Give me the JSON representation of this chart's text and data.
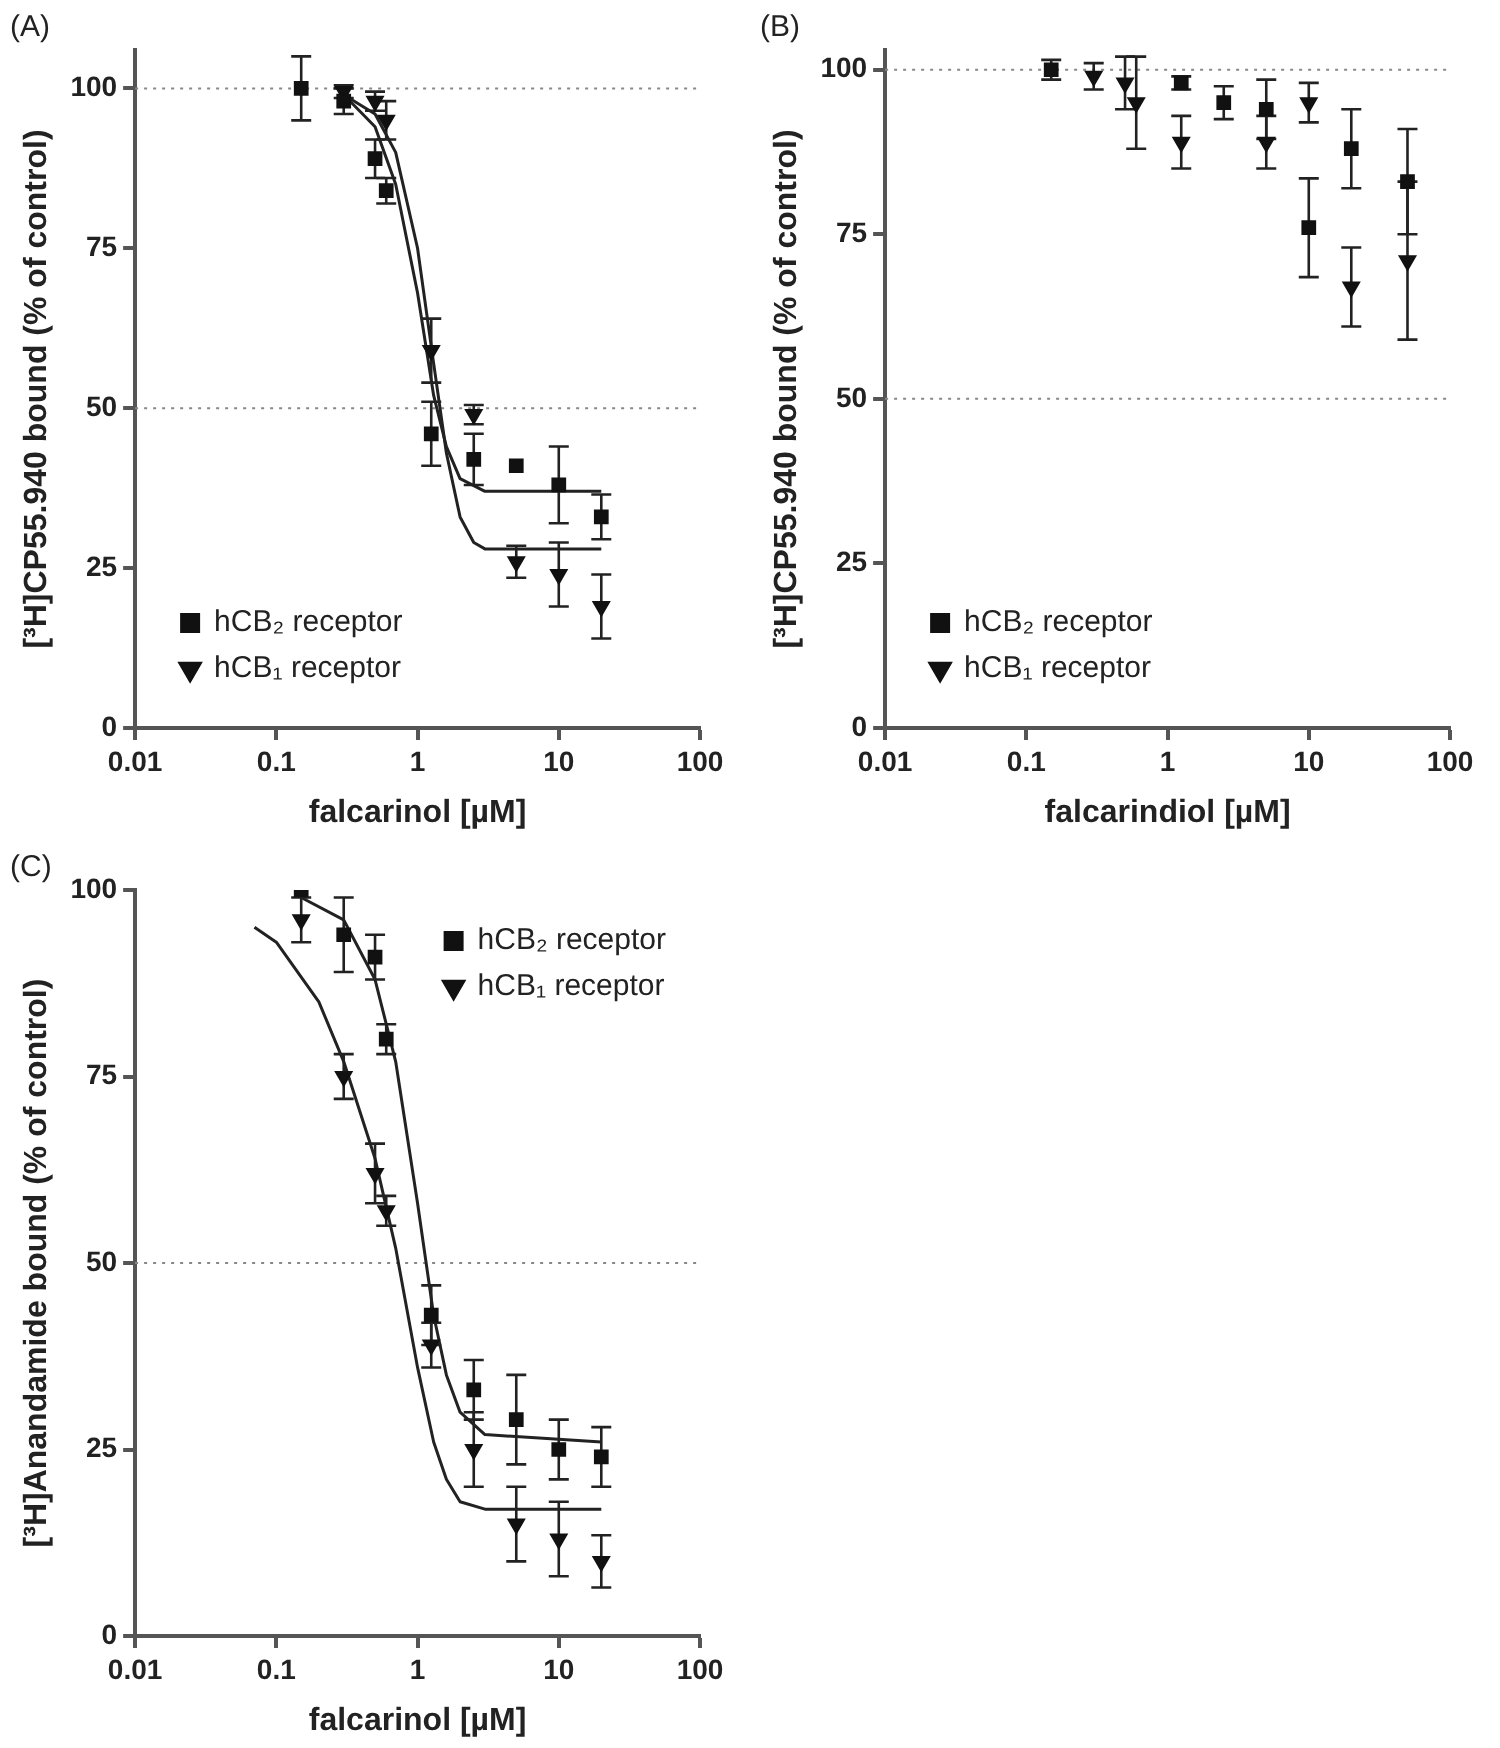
{
  "chart_data": [
    {
      "type": "scatter",
      "title": "(A)",
      "xlabel": "falcarinol [µM]",
      "ylabel": "[³H]CP55.940 bound (% of control)",
      "log": "x",
      "xlim": [
        0.01,
        100
      ],
      "xticks": [
        0.01,
        0.1,
        1,
        10,
        100
      ],
      "ylim": [
        0,
        106
      ],
      "yticks": [
        0,
        25,
        50,
        75,
        100
      ],
      "grid": false,
      "legend": "bottom left",
      "ref_lines": [
        {
          "axis": "y",
          "value": 100,
          "line_style": "dotted"
        },
        {
          "axis": "y",
          "value": 50,
          "line_style": "dotted"
        }
      ],
      "series": [
        {
          "name": "hCB₂ receptor",
          "color": "#111111",
          "marker": "square",
          "x": [
            0.15,
            0.3,
            0.5,
            0.6,
            1.25,
            2.5,
            5,
            10,
            20
          ],
          "values": [
            100,
            98,
            89,
            84,
            46,
            42,
            41,
            38,
            33
          ],
          "errors": [
            5,
            2,
            3,
            2,
            5,
            4,
            null,
            6,
            3.5
          ]
        },
        {
          "name": "hCB₁ receptor",
          "color": "#111111",
          "marker": "triangle",
          "x": [
            0.3,
            0.5,
            0.6,
            1.25,
            2.5,
            5,
            10,
            20
          ],
          "values": [
            99.5,
            98,
            95,
            59,
            49,
            26,
            24,
            19
          ],
          "errors": [
            1,
            1.5,
            3,
            5,
            1.5,
            2.5,
            5,
            5
          ]
        },
        {
          "type": "line",
          "color": "#222222",
          "marker": "none",
          "x": [
            0.3,
            0.5,
            0.7,
            1,
            1.3,
            1.6,
            2,
            3,
            20
          ],
          "values": [
            99,
            94,
            85,
            68,
            52,
            44,
            39,
            37,
            37
          ]
        },
        {
          "type": "line",
          "color": "#222222",
          "marker": "none",
          "x": [
            0.3,
            0.5,
            0.7,
            1,
            1.3,
            1.6,
            2,
            2.5,
            3,
            20
          ],
          "values": [
            99,
            96,
            90,
            75,
            57,
            43,
            33,
            29,
            28,
            28
          ]
        }
      ]
    },
    {
      "type": "scatter",
      "title": "(B)",
      "xlabel": "falcarindiol [µM]",
      "ylabel": "[³H]CP55.940 bound (% of control)",
      "log": "x",
      "xlim": [
        0.01,
        100
      ],
      "xticks": [
        0.01,
        0.1,
        1,
        10,
        100
      ],
      "ylim": [
        0,
        103
      ],
      "yticks": [
        0,
        25,
        50,
        75,
        100
      ],
      "grid": false,
      "legend": "bottom left",
      "ref_lines": [
        {
          "axis": "y",
          "value": 100,
          "line_style": "dotted"
        },
        {
          "axis": "y",
          "value": 50,
          "line_style": "dotted"
        }
      ],
      "series": [
        {
          "name": "hCB₂ receptor",
          "color": "#111111",
          "marker": "square",
          "x": [
            0.15,
            1.25,
            2.5,
            5,
            10,
            20,
            50
          ],
          "values": [
            100,
            98,
            95,
            94,
            76,
            88,
            83
          ],
          "errors": [
            1.5,
            1,
            2.5,
            4.5,
            7.5,
            6,
            8
          ]
        },
        {
          "name": "hCB₁ receptor",
          "color": "#111111",
          "marker": "triangle",
          "x": [
            0.3,
            0.5,
            0.6,
            1.25,
            2.5,
            5,
            10,
            20,
            50
          ],
          "values": [
            99,
            98,
            95,
            89,
            null,
            89,
            95,
            67,
            71
          ],
          "errors": [
            2,
            4,
            7,
            4,
            null,
            4,
            3,
            6,
            12
          ]
        }
      ]
    },
    {
      "type": "scatter",
      "title": "(C)",
      "xlabel": "falcarinol [µM]",
      "ylabel": "[³H]Anandamide bound (% of control)",
      "log": "x",
      "xlim": [
        0.01,
        100
      ],
      "xticks": [
        0.01,
        0.1,
        1,
        10,
        100
      ],
      "ylim": [
        0,
        100
      ],
      "yticks": [
        0,
        25,
        50,
        75,
        100
      ],
      "grid": false,
      "legend": "top right",
      "ref_lines": [
        {
          "axis": "y",
          "value": 50,
          "line_style": "dotted"
        }
      ],
      "series": [
        {
          "name": "hCB₂ receptor",
          "color": "#111111",
          "marker": "square",
          "x": [
            0.15,
            0.3,
            0.5,
            0.6,
            1.25,
            2.5,
            5,
            10,
            20
          ],
          "values": [
            100,
            94,
            91,
            80,
            43,
            33,
            29,
            25,
            24
          ],
          "errors": [
            null,
            5,
            3,
            2,
            4,
            4,
            6,
            4,
            4
          ]
        },
        {
          "name": "hCB₁ receptor",
          "color": "#111111",
          "marker": "triangle",
          "x": [
            0.15,
            0.3,
            0.5,
            0.6,
            1.25,
            2.5,
            5,
            10,
            20
          ],
          "values": [
            96,
            75,
            62,
            57,
            39,
            25,
            15,
            13,
            10
          ],
          "errors": [
            3,
            3,
            4,
            2,
            3,
            5,
            5,
            5,
            3.5
          ]
        },
        {
          "type": "line",
          "color": "#222222",
          "marker": "none",
          "x": [
            0.15,
            0.3,
            0.5,
            0.7,
            1,
            1.3,
            1.6,
            2,
            3,
            20
          ],
          "values": [
            99,
            96,
            88,
            77,
            58,
            43,
            35,
            30,
            27,
            26
          ]
        },
        {
          "type": "line",
          "color": "#222222",
          "marker": "none",
          "x": [
            0.07,
            0.1,
            0.2,
            0.3,
            0.5,
            0.7,
            1,
            1.3,
            1.6,
            2,
            3,
            20
          ],
          "values": [
            95,
            93,
            85,
            77,
            64,
            52,
            36,
            26,
            21,
            18,
            17,
            17
          ]
        }
      ]
    }
  ]
}
